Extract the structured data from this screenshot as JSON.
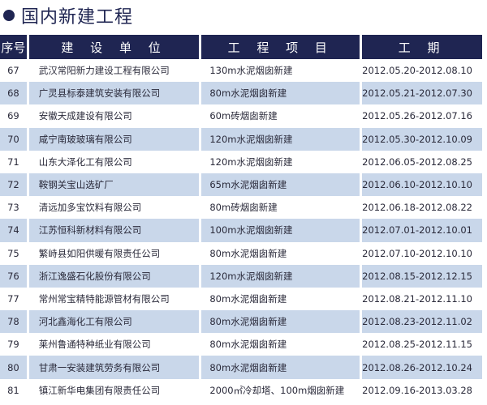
{
  "title": "国内新建工程",
  "headers": [
    "序号",
    "建 设 单 位",
    "工 程 项 目",
    "工 期"
  ],
  "rows": [
    [
      "67",
      "武汉常阳新力建设工程有限公司",
      "130m水泥烟囱新建",
      "2012.05.20-2012.08.10"
    ],
    [
      "68",
      "广灵县标泰建筑安装有限公司",
      "80m水泥烟囱新建",
      "2012.05.21-2012.07.30"
    ],
    [
      "69",
      "安徽天成建设有限公司",
      "60m砖烟囱新建",
      "2012.05.26-2012.07.16"
    ],
    [
      "70",
      "咸宁南玻玻璃有限公司",
      "120m水泥烟囱新建",
      "2012.05.30-2012.10.09"
    ],
    [
      "71",
      "山东大泽化工有限公司",
      "120m水泥烟囱新建",
      "2012.06.05-2012.08.25"
    ],
    [
      "72",
      "鞍钢关宝山选矿厂",
      "65m水泥烟囱新建",
      "2012.06.10-2012.10.10"
    ],
    [
      "73",
      "清远加多宝饮料有限公司",
      "80m砖烟囱新建",
      "2012.06.18-2012.08.22"
    ],
    [
      "74",
      "江苏恒科新材料有限公司",
      "100m水泥烟囱新建",
      "2012.07.01-2012.10.01"
    ],
    [
      "75",
      "繁峙县如阳供暖有限责任公司",
      "80m水泥烟囱新建",
      "2012.07.10-2012.10.10"
    ],
    [
      "76",
      "浙江逸盛石化股份有限公司",
      "120m水泥烟囱新建",
      "2012.08.15-2012.12.15"
    ],
    [
      "77",
      "常州常宝精特能源管材有限公司",
      "80m水泥烟囱新建",
      "2012.08.21-2012.11.10"
    ],
    [
      "78",
      "河北鑫海化工有限公司",
      "80m水泥烟囱新建",
      "2012.08.23-2012.11.02"
    ],
    [
      "79",
      "莱州鲁通特种纸业有限公司",
      "80m水泥烟囱新建",
      "2012.08.25-2012.11.15"
    ],
    [
      "80",
      "甘肃一安装建筑劳务有限公司",
      "80m水泥烟囱新建",
      "2012.08.26-2012.10.24"
    ],
    [
      "81",
      "镇江新华电集团有限责任公司",
      "2000㎡冷却塔、100m烟囱新建",
      "2012.09.16-2013.03.28"
    ]
  ],
  "colors": {
    "header": "#1f2552",
    "alt_row": "#c9d7ea"
  }
}
